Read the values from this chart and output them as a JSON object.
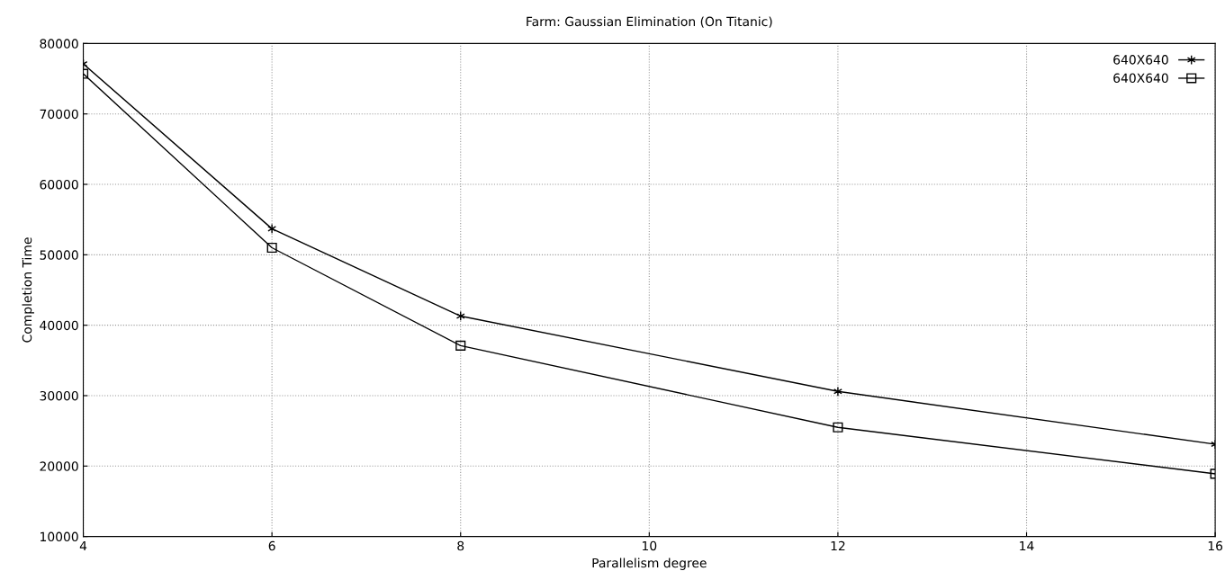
{
  "chart_data": {
    "type": "line",
    "title": "Farm: Gaussian Elimination (On Titanic)",
    "xlabel": "Parallelism degree",
    "ylabel": "Completion Time",
    "x": [
      4,
      6,
      8,
      12,
      16
    ],
    "series": [
      {
        "name": "640X640",
        "color": "#000000",
        "marker": "cross",
        "values": [
          77100,
          53700,
          41300,
          30600,
          23100
        ]
      },
      {
        "name": "640X640",
        "color": "#000000",
        "marker": "square",
        "values": [
          75700,
          51000,
          37100,
          25500,
          18900
        ]
      }
    ],
    "xlim": [
      4,
      16
    ],
    "xticks": [
      4,
      6,
      8,
      10,
      12,
      14,
      16
    ],
    "ylim": [
      10000,
      80000
    ],
    "yticks": [
      10000,
      20000,
      30000,
      40000,
      50000,
      60000,
      70000,
      80000
    ],
    "grid": true,
    "legend": "top right",
    "line_style": "solid"
  }
}
